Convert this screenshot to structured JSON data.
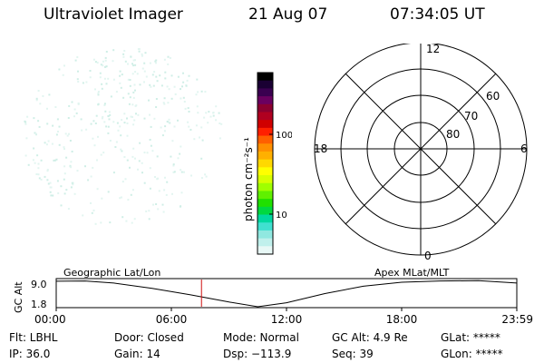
{
  "header": {
    "instrument": "Ultraviolet Imager",
    "date": "21 Aug 07",
    "time": "07:34:05 UT"
  },
  "colorbar": {
    "label": "photon cm⁻²s⁻¹",
    "tick_100": "100",
    "tick_10": "10",
    "colors": [
      "#000000",
      "#1a0033",
      "#3a0050",
      "#6a0060",
      "#8b0030",
      "#b00020",
      "#d00000",
      "#ff2000",
      "#ff6000",
      "#ff9000",
      "#ffb000",
      "#ffd800",
      "#ffff00",
      "#d8ff00",
      "#a0ff00",
      "#60f000",
      "#20e000",
      "#00d840",
      "#00d8a0",
      "#40e0d0",
      "#90e8e0",
      "#c0f0ec",
      "#e8f8f6"
    ]
  },
  "polar": {
    "mlt_top": "12",
    "mlt_bottom": "0",
    "mlt_left": "18",
    "mlt_right": "6",
    "lat_60": "60",
    "lat_70": "70",
    "lat_80": "80"
  },
  "timeline": {
    "ylabel": "GC Alt",
    "ymax": "9.0",
    "ymin": "1.8",
    "left_label": "Geographic Lat/Lon",
    "right_label": "Apex MLat/MLT",
    "ticks": [
      "00:00",
      "06:00",
      "12:00",
      "18:00",
      "23:59"
    ],
    "current_time_hours": 7.57
  },
  "status": {
    "flt": "Flt: LBHL",
    "door": "Door: Closed",
    "mode": "Mode: Normal",
    "gcalt": "GC Alt: 4.9 Re",
    "glat": "GLat: *****",
    "ip": "IP: 36.0",
    "gain": "Gain: 14",
    "dsp": "Dsp: −113.9",
    "seq": "Seq: 39",
    "glon": "GLon: *****"
  }
}
